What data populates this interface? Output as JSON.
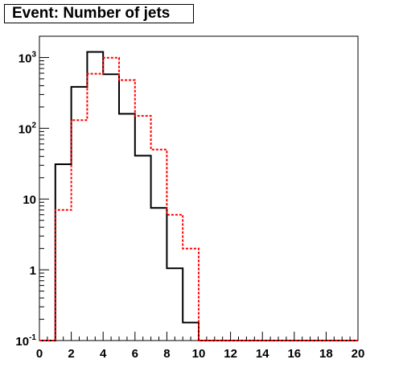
{
  "title": "Event: Number of jets",
  "colors": {
    "background": "#ffffff",
    "frame": "#000000",
    "series_black": "#000000",
    "series_red": "#ff0000"
  },
  "chart_data": {
    "type": "histogram",
    "title": "Event: Number of jets",
    "xlabel": "",
    "ylabel": "",
    "xlim": [
      0,
      20
    ],
    "ylim": [
      0.1,
      2000
    ],
    "yscale": "log",
    "grid": false,
    "legend": "none",
    "bin_edges": [
      0,
      1,
      2,
      3,
      4,
      5,
      6,
      7,
      8,
      9,
      10,
      11,
      12,
      13,
      14,
      15,
      16,
      17,
      18,
      19,
      20
    ],
    "x_ticks": [
      "0",
      "2",
      "4",
      "6",
      "8",
      "10",
      "12",
      "14",
      "16",
      "18",
      "20"
    ],
    "y_ticks": [
      {
        "base": "10",
        "exp": "-1"
      },
      {
        "base": "1",
        "exp": ""
      },
      {
        "base": "10",
        "exp": ""
      },
      {
        "base": "10",
        "exp": "2"
      },
      {
        "base": "10",
        "exp": "3"
      }
    ],
    "series": [
      {
        "color": "#000000",
        "style": "solid",
        "values": [
          0,
          31,
          385,
          1200,
          580,
          160,
          41,
          7.5,
          1.05,
          0.18,
          0,
          0,
          0,
          0,
          0,
          0,
          0,
          0,
          0,
          0
        ]
      },
      {
        "color": "#ff0000",
        "style": "dotted",
        "values": [
          0,
          7,
          130,
          590,
          990,
          480,
          150,
          50,
          6,
          2,
          0,
          0,
          0,
          0,
          0,
          0,
          0,
          0,
          0,
          0
        ]
      }
    ]
  }
}
